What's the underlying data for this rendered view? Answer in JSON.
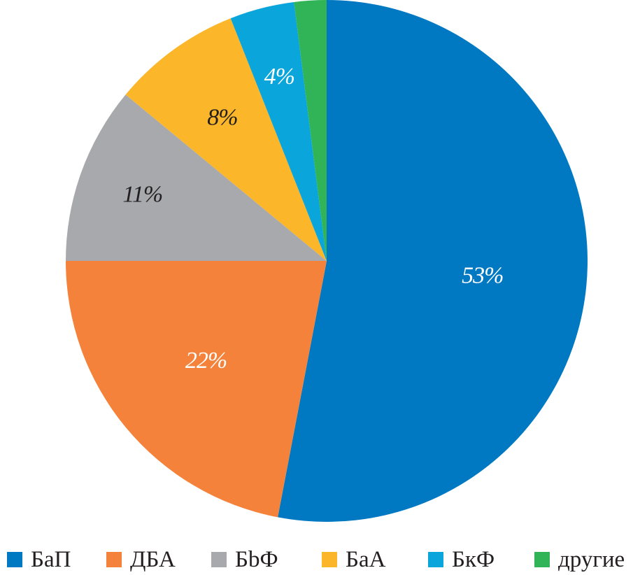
{
  "chart_data": {
    "type": "pie",
    "title": "",
    "start_angle": "12 o'clock",
    "direction": "clockwise",
    "slices": [
      {
        "name": "БаП",
        "value": 53,
        "label": "53%",
        "color": "#0079c2",
        "label_color": "#ffffff"
      },
      {
        "name": "ДБА",
        "value": 22,
        "label": "22%",
        "color": "#f5823a",
        "label_color": "#ffffff"
      },
      {
        "name": "БbФ",
        "value": 11,
        "label": "11%",
        "color": "#a8a9ac",
        "label_color": "#231f20"
      },
      {
        "name": "БаА",
        "value": 8,
        "label": "8%",
        "color": "#fbb62a",
        "label_color": "#231f20"
      },
      {
        "name": "БкФ",
        "value": 4,
        "label": "4%",
        "color": "#0aa5da",
        "label_color": "#ffffff"
      },
      {
        "name": "другие",
        "value": 2,
        "label": "",
        "color": "#30b457",
        "label_color": "#ffffff"
      }
    ],
    "legend_position": "bottom"
  }
}
